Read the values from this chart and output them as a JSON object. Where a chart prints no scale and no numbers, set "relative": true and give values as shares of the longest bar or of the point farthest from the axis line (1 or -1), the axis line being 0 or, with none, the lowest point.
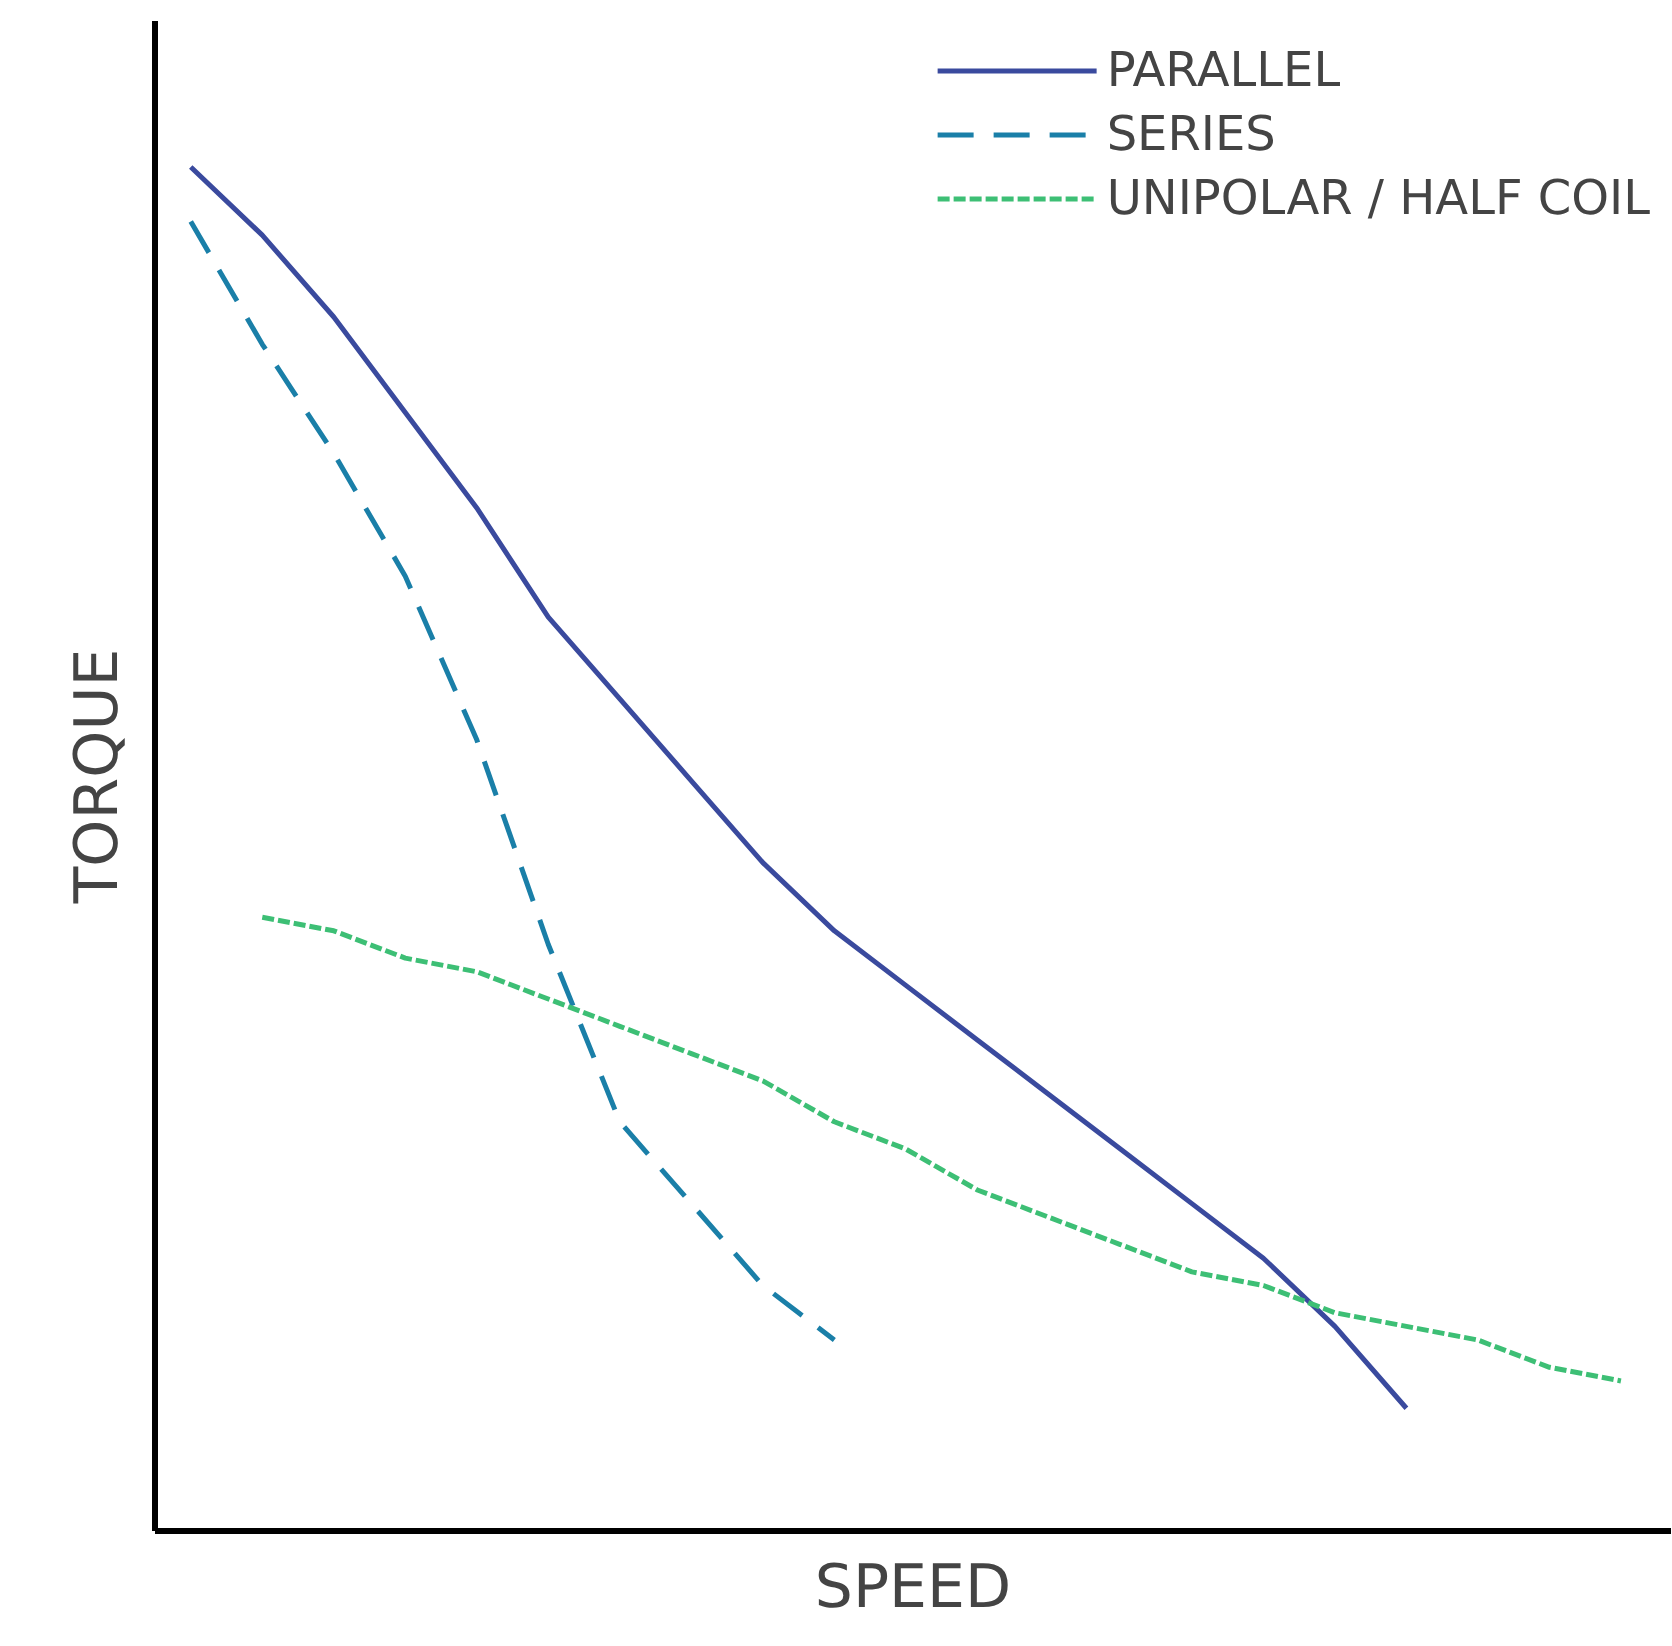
{
  "chart_data": {
    "type": "line",
    "relative": true,
    "xlabel": "SPEED",
    "ylabel": "TORQUE",
    "legend": "top right",
    "grid": false,
    "tick_labels": false,
    "categories": [
      null,
      null,
      null,
      null,
      null,
      null,
      null,
      null,
      null,
      null,
      null,
      null,
      null,
      null,
      null,
      null,
      null,
      null,
      null,
      null,
      null
    ],
    "series": [
      {
        "name": "PARALLEL",
        "color": "#3a4a9e",
        "line_style": "solid",
        "values": [
          1.0,
          0.95,
          0.89,
          0.82,
          0.75,
          0.67,
          0.61,
          0.55,
          0.49,
          0.44,
          0.4,
          0.36,
          0.32,
          0.28,
          0.24,
          0.2,
          0.15,
          0.09,
          null,
          null,
          null
        ]
      },
      {
        "name": "SERIES",
        "color": "#1a7fa8",
        "line_style": "dashed",
        "values": [
          0.96,
          0.87,
          0.79,
          0.7,
          0.58,
          0.43,
          0.3,
          0.24,
          0.18,
          0.14,
          null,
          null,
          null,
          null,
          null,
          null,
          null,
          null,
          null,
          null,
          null
        ]
      },
      {
        "name": "UNIPOLAR / HALF COIL",
        "color": "#3dbf75",
        "line_style": "dotted",
        "values": [
          null,
          0.45,
          0.44,
          0.42,
          0.41,
          0.39,
          0.37,
          0.35,
          0.33,
          0.3,
          0.28,
          0.25,
          0.23,
          0.21,
          0.19,
          0.18,
          0.16,
          0.15,
          0.14,
          0.12,
          0.11
        ]
      }
    ]
  }
}
